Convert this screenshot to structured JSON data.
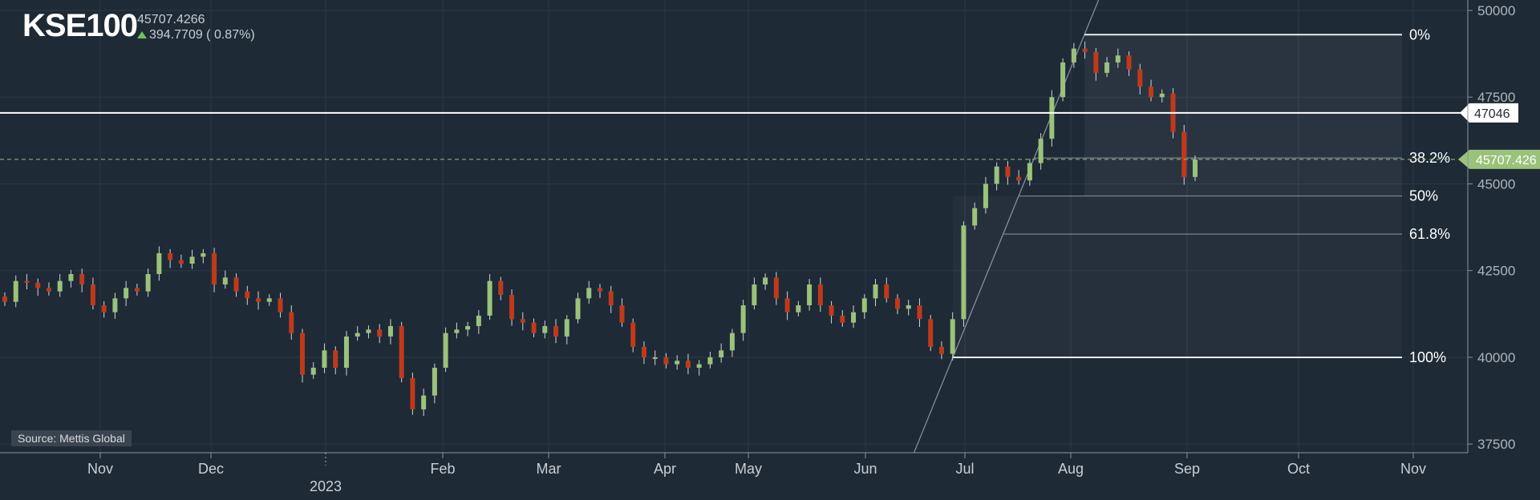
{
  "header": {
    "symbol": "KSE100",
    "last_value": "45707.4266",
    "change": "394.7709 ( 0.87%)"
  },
  "source_label": "Source: Mettis Global",
  "colors": {
    "background": "#1e2a36",
    "up": "#9bc27a",
    "down": "#c0391b",
    "price_tag": "#9bc27a"
  },
  "chart_data": {
    "type": "candlestick",
    "title": "KSE100",
    "x_labels": [
      "Nov",
      "Dec",
      "2023",
      "Feb",
      "Mar",
      "Apr",
      "May",
      "Jun",
      "Jul",
      "Aug",
      "Sep",
      "Oct",
      "Nov"
    ],
    "y_ticks": [
      37500,
      40000,
      42500,
      45000,
      47500,
      50000
    ],
    "ylim": [
      37250,
      50300
    ],
    "current_price": 45707.426,
    "current_price_label": "45707.426",
    "horizontal_line": {
      "value": 47046,
      "label": "47046"
    },
    "fibonacci": {
      "high": 49300,
      "low": 40000,
      "levels": [
        {
          "label": "0%",
          "ratio": 0
        },
        {
          "label": "38.2%",
          "ratio": 0.382
        },
        {
          "label": "50%",
          "ratio": 0.5
        },
        {
          "label": "61.8%",
          "ratio": 0.618
        },
        {
          "label": "100%",
          "ratio": 1
        }
      ]
    },
    "close_series": [
      41600,
      42200,
      42150,
      42000,
      41900,
      42200,
      42400,
      42100,
      41500,
      41300,
      41700,
      42000,
      41900,
      42400,
      43000,
      42800,
      42700,
      42900,
      43000,
      42100,
      42300,
      41900,
      41700,
      41600,
      41700,
      41300,
      40700,
      39500,
      39700,
      40200,
      39700,
      40600,
      40700,
      40800,
      40600,
      40900,
      39400,
      38500,
      38900,
      39700,
      40700,
      40800,
      40900,
      41200,
      42200,
      41800,
      41100,
      41000,
      40700,
      40900,
      40600,
      41100,
      41700,
      42000,
      41900,
      41500,
      41000,
      40300,
      40000,
      40000,
      39800,
      39900,
      39700,
      39800,
      40000,
      40200,
      40700,
      41500,
      42100,
      42300,
      41700,
      41300,
      41500,
      42100,
      41500,
      41200,
      41000,
      41300,
      41700,
      42100,
      41700,
      41400,
      41500,
      41100,
      40300,
      40100,
      41100,
      43800,
      44300,
      45000,
      45500,
      45200,
      45100,
      45600,
      46300,
      47500,
      48500,
      48900,
      48800,
      48200,
      48500,
      48700,
      48300,
      47800,
      47500,
      47600,
      46500,
      45200,
      45700
    ]
  }
}
